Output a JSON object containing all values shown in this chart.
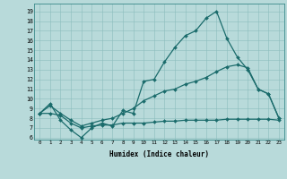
{
  "xlabel": "Humidex (Indice chaleur)",
  "background_color": "#b8dada",
  "line_color": "#1a6b6b",
  "x_ticks": [
    0,
    1,
    2,
    3,
    4,
    5,
    6,
    7,
    8,
    9,
    10,
    11,
    12,
    13,
    14,
    15,
    16,
    17,
    18,
    19,
    20,
    21,
    22,
    23
  ],
  "y_ticks": [
    6,
    7,
    8,
    9,
    10,
    11,
    12,
    13,
    14,
    15,
    16,
    17,
    18,
    19
  ],
  "ylim": [
    5.8,
    19.8
  ],
  "xlim": [
    -0.5,
    23.5
  ],
  "series": [
    {
      "x": [
        0,
        1,
        2,
        3,
        4,
        5,
        6,
        7,
        8,
        9,
        10,
        11,
        12,
        13,
        14,
        15,
        16,
        17,
        18,
        19,
        20,
        21,
        22,
        23
      ],
      "y": [
        8.5,
        9.5,
        7.8,
        6.8,
        6.0,
        7.0,
        7.5,
        7.2,
        8.8,
        8.5,
        11.8,
        12.0,
        13.8,
        15.3,
        16.5,
        17.0,
        18.3,
        19.0,
        16.2,
        14.3,
        13.0,
        11.0,
        10.5,
        8.0
      ]
    },
    {
      "x": [
        0,
        1,
        2,
        3,
        4,
        5,
        6,
        7,
        8,
        9,
        10,
        11,
        12,
        13,
        14,
        15,
        16,
        17,
        18,
        19,
        20,
        21,
        22,
        23
      ],
      "y": [
        8.5,
        9.3,
        8.5,
        7.8,
        7.2,
        7.5,
        7.8,
        8.0,
        8.5,
        9.0,
        9.8,
        10.3,
        10.8,
        11.0,
        11.5,
        11.8,
        12.2,
        12.8,
        13.3,
        13.5,
        13.2,
        11.0,
        10.5,
        8.0
      ]
    },
    {
      "x": [
        0,
        1,
        2,
        3,
        4,
        5,
        6,
        7,
        8,
        9,
        10,
        11,
        12,
        13,
        14,
        15,
        16,
        17,
        18,
        19,
        20,
        21,
        22,
        23
      ],
      "y": [
        8.5,
        8.5,
        8.3,
        7.5,
        7.0,
        7.2,
        7.3,
        7.3,
        7.5,
        7.5,
        7.5,
        7.6,
        7.7,
        7.7,
        7.8,
        7.8,
        7.8,
        7.8,
        7.9,
        7.9,
        7.9,
        7.9,
        7.9,
        7.8
      ]
    }
  ]
}
